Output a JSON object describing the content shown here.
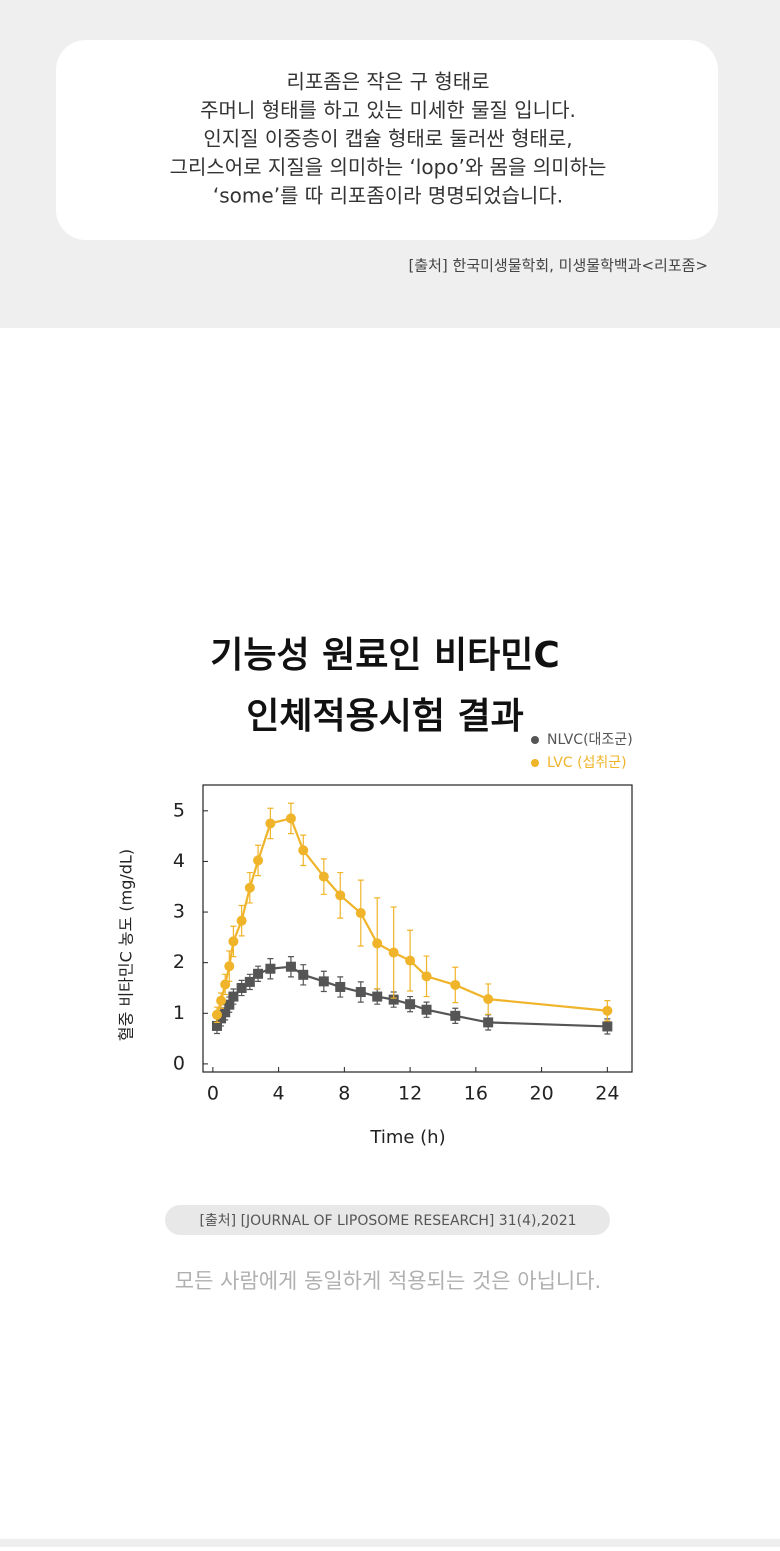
{
  "top": {
    "lines": [
      "리포좀은 작은 구 형태로",
      "주머니 형태를 하고 있는 미세한 물질 입니다.",
      "인지질 이중층이 캡슐 형태로 둘러싼 형태로,",
      "그리스어로 지질을 의미하는 ‘lopo’와 몸을 의미하는",
      "‘some’를 따 리포좀이라 명명되었습니다."
    ],
    "source": "[출처] 한국미생물학회, 미생물학백과<리포좀>"
  },
  "chart_data": {
    "type": "line",
    "title": [
      "기능성 원료인 비타민C",
      "인체적용시험 결과"
    ],
    "xlabel": "Time (h)",
    "ylabel": "혈중 비타민C 농도 (mg/dL)",
    "x": [
      0.25,
      0.5,
      0.75,
      1,
      1.25,
      1.75,
      2.25,
      2.75,
      3.5,
      4.75,
      5.5,
      6.75,
      7.75,
      9,
      10,
      11,
      12,
      13,
      14.75,
      16.75,
      24
    ],
    "series": [
      {
        "name": "NLVC(대조군)",
        "color": "#555555",
        "marker": "square",
        "values": [
          0.75,
          0.9,
          1.02,
          1.17,
          1.33,
          1.5,
          1.62,
          1.78,
          1.88,
          1.92,
          1.76,
          1.63,
          1.52,
          1.42,
          1.33,
          1.27,
          1.18,
          1.07,
          0.95,
          0.82,
          0.74
        ],
        "errors": [
          0.15,
          0.15,
          0.15,
          0.15,
          0.15,
          0.15,
          0.15,
          0.15,
          0.2,
          0.2,
          0.2,
          0.2,
          0.2,
          0.2,
          0.15,
          0.15,
          0.15,
          0.15,
          0.15,
          0.15,
          0.15
        ]
      },
      {
        "name": "LVC (섭취군)",
        "color": "#f0b42a",
        "marker": "circle",
        "values": [
          0.97,
          1.25,
          1.57,
          1.93,
          2.42,
          2.83,
          3.48,
          4.02,
          4.75,
          4.85,
          4.22,
          3.7,
          3.33,
          2.98,
          2.38,
          2.2,
          2.04,
          1.73,
          1.56,
          1.28,
          1.05
        ],
        "errors": [
          0.15,
          0.15,
          0.2,
          0.3,
          0.3,
          0.3,
          0.3,
          0.3,
          0.3,
          0.3,
          0.3,
          0.35,
          0.45,
          0.65,
          0.9,
          0.9,
          0.6,
          0.4,
          0.35,
          0.3,
          0.2
        ]
      }
    ],
    "xlim": [
      -0.6,
      25.5
    ],
    "ylim": [
      -0.16,
      5.51
    ],
    "xticks": [
      0,
      4,
      8,
      12,
      16,
      20,
      24
    ],
    "yticks": [
      0,
      1,
      2,
      3,
      4,
      5
    ]
  },
  "source": "[출처] [JOURNAL OF LIPOSOME RESEARCH] 31(4),2021",
  "disclaimer": "모든 사람에게 동일하게 적용되는 것은 아닙니다."
}
